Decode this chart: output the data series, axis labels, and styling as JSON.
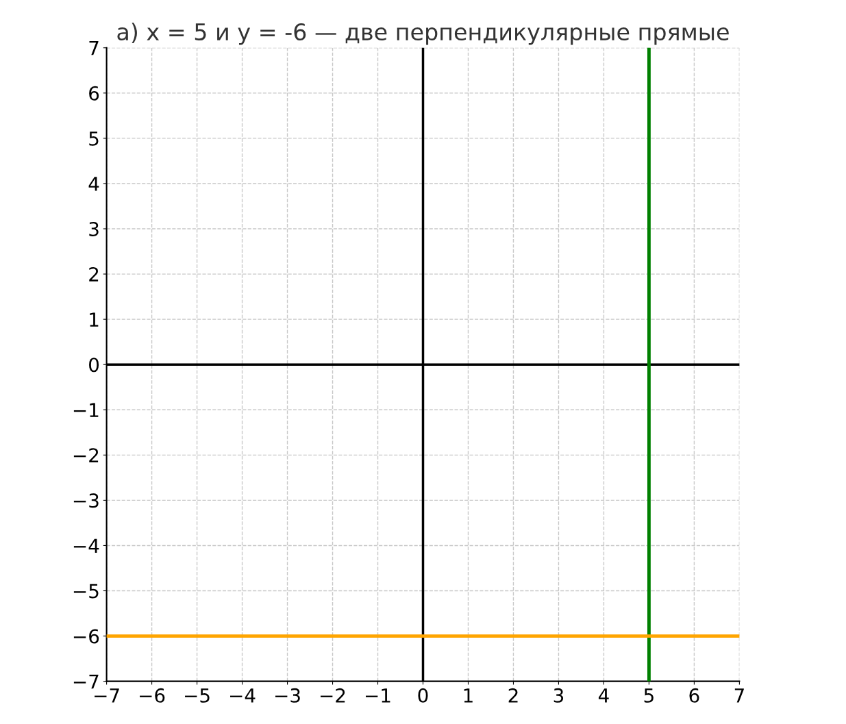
{
  "chart_data": {
    "type": "line",
    "title": "а) x = 5 и y = -6 — две перпендикулярные прямые",
    "xlim": [
      -7,
      7
    ],
    "ylim": [
      -7,
      7
    ],
    "xticks": [
      {
        "value": -7,
        "label": "−7"
      },
      {
        "value": -6,
        "label": "−6"
      },
      {
        "value": -5,
        "label": "−5"
      },
      {
        "value": -4,
        "label": "−4"
      },
      {
        "value": -3,
        "label": "−3"
      },
      {
        "value": -2,
        "label": "−2"
      },
      {
        "value": -1,
        "label": "−1"
      },
      0,
      1,
      2,
      3,
      4,
      5,
      6,
      7
    ],
    "yticks": [
      {
        "value": -7,
        "label": "−7"
      },
      {
        "value": -6,
        "label": "−6"
      },
      {
        "value": -5,
        "label": "−5"
      },
      {
        "value": -4,
        "label": "−4"
      },
      {
        "value": -3,
        "label": "−3"
      },
      {
        "value": -2,
        "label": "−2"
      },
      {
        "value": -1,
        "label": "−1"
      },
      0,
      1,
      2,
      3,
      4,
      5,
      6,
      7
    ],
    "grid": true,
    "series": [
      {
        "color": "#000000",
        "x": [
          -7,
          7
        ],
        "values": [
          0,
          0
        ]
      },
      {
        "color": "#000000",
        "x": [
          0,
          0
        ],
        "values": [
          -7,
          7
        ]
      },
      {
        "color": "#008000",
        "x": [
          5,
          5
        ],
        "values": [
          -7,
          7
        ]
      },
      {
        "color": "#ffa500",
        "x": [
          -7,
          7
        ],
        "values": [
          -6,
          -6
        ]
      }
    ]
  }
}
